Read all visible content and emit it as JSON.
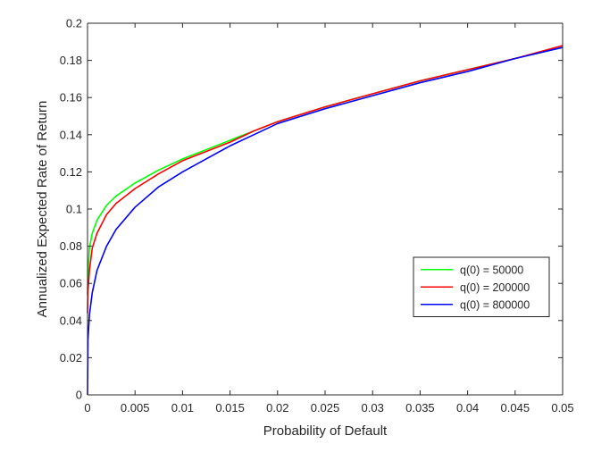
{
  "chart_data": {
    "type": "line",
    "title": "",
    "xlabel": "Probability of Default",
    "ylabel": "Annualized Expected Rate of Return",
    "xlim": [
      0,
      0.05
    ],
    "ylim": [
      0,
      0.2
    ],
    "xticks": [
      0,
      0.005,
      0.01,
      0.015,
      0.02,
      0.025,
      0.03,
      0.035,
      0.04,
      0.045,
      0.05
    ],
    "xtick_labels": [
      "0",
      "0.005",
      "0.01",
      "0.015",
      "0.02",
      "0.025",
      "0.03",
      "0.035",
      "0.04",
      "0.045",
      "0.05"
    ],
    "yticks": [
      0,
      0.02,
      0.04,
      0.06,
      0.08,
      0.1,
      0.12,
      0.14,
      0.16,
      0.18,
      0.2
    ],
    "ytick_labels": [
      "0",
      "0.02",
      "0.04",
      "0.06",
      "0.08",
      "0.1",
      "0.12",
      "0.14",
      "0.16",
      "0.18",
      "0.2"
    ],
    "grid": false,
    "legend_position": "right",
    "series": [
      {
        "name": "q(0) = 50000",
        "color": "#00ff00",
        "x": [
          0,
          5e-05,
          0.0002,
          0.0005,
          0.001,
          0.002,
          0.003,
          0.005,
          0.0075,
          0.01,
          0.0125,
          0.015,
          0.0175,
          0.02,
          0.025,
          0.03,
          0.035,
          0.04,
          0.045,
          0.05
        ],
        "y": [
          0.054,
          0.065,
          0.079,
          0.087,
          0.094,
          0.102,
          0.107,
          0.114,
          0.121,
          0.127,
          0.132,
          0.137,
          0.142,
          0.147,
          0.155,
          0.162,
          0.169,
          0.175,
          0.181,
          0.187
        ]
      },
      {
        "name": "q(0) = 200000",
        "color": "#ff0000",
        "x": [
          0,
          5e-05,
          0.0002,
          0.0005,
          0.001,
          0.002,
          0.003,
          0.005,
          0.0075,
          0.01,
          0.0125,
          0.015,
          0.0175,
          0.02,
          0.025,
          0.03,
          0.035,
          0.04,
          0.045,
          0.05
        ],
        "y": [
          0.044,
          0.056,
          0.067,
          0.079,
          0.087,
          0.097,
          0.103,
          0.111,
          0.119,
          0.126,
          0.131,
          0.136,
          0.142,
          0.147,
          0.155,
          0.162,
          0.169,
          0.175,
          0.181,
          0.188
        ]
      },
      {
        "name": "q(0) = 800000",
        "color": "#0000ff",
        "x": [
          0,
          5e-05,
          0.0002,
          0.0005,
          0.001,
          0.002,
          0.003,
          0.005,
          0.0075,
          0.01,
          0.0125,
          0.015,
          0.0175,
          0.02,
          0.025,
          0.03,
          0.035,
          0.04,
          0.045,
          0.05
        ],
        "y": [
          0,
          0.03,
          0.043,
          0.055,
          0.067,
          0.08,
          0.089,
          0.101,
          0.112,
          0.12,
          0.127,
          0.134,
          0.14,
          0.146,
          0.154,
          0.161,
          0.168,
          0.174,
          0.181,
          0.187
        ]
      }
    ]
  }
}
